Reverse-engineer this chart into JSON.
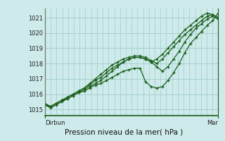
{
  "bg_color": "#ceeaea",
  "grid_color": "#a0cccc",
  "line_color": "#1a5e1a",
  "marker_color": "#1a5e1a",
  "title": "Pression niveau de la mer( hPa )",
  "xlabel_left": "Dirbun",
  "xlabel_right": "Mar",
  "ylim": [
    1014.6,
    1021.6
  ],
  "yticks": [
    1015,
    1016,
    1017,
    1018,
    1019,
    1020,
    1021
  ],
  "n_xminor": 30,
  "series": [
    [
      1015.3,
      1015.2,
      1015.4,
      1015.6,
      1015.8,
      1016.0,
      1016.2,
      1016.4,
      1016.6,
      1016.9,
      1017.1,
      1017.4,
      1017.7,
      1017.9,
      1018.1,
      1018.3,
      1018.4,
      1018.4,
      1018.3,
      1018.1,
      1018.3,
      1018.6,
      1019.0,
      1019.4,
      1019.8,
      1020.2,
      1020.5,
      1020.8,
      1021.1,
      1021.3,
      1021.2,
      1021.0
    ],
    [
      1015.3,
      1015.2,
      1015.4,
      1015.6,
      1015.8,
      1016.0,
      1016.2,
      1016.4,
      1016.7,
      1017.0,
      1017.3,
      1017.6,
      1017.9,
      1018.1,
      1018.3,
      1018.4,
      1018.5,
      1018.5,
      1018.4,
      1018.2,
      1018.0,
      1018.3,
      1018.7,
      1019.1,
      1019.5,
      1019.9,
      1020.2,
      1020.5,
      1020.8,
      1021.1,
      1021.2,
      1021.0
    ],
    [
      1015.3,
      1015.1,
      1015.3,
      1015.5,
      1015.7,
      1015.9,
      1016.1,
      1016.3,
      1016.5,
      1016.7,
      1016.9,
      1017.2,
      1017.5,
      1017.8,
      1018.1,
      1018.3,
      1018.4,
      1018.4,
      1018.3,
      1018.1,
      1017.8,
      1017.5,
      1017.8,
      1018.3,
      1018.8,
      1019.4,
      1019.9,
      1020.3,
      1020.6,
      1020.9,
      1021.1,
      1020.9
    ],
    [
      1015.4,
      1015.2,
      1015.4,
      1015.6,
      1015.7,
      1015.9,
      1016.1,
      1016.2,
      1016.4,
      1016.6,
      1016.7,
      1016.9,
      1017.1,
      1017.3,
      1017.5,
      1017.6,
      1017.7,
      1017.7,
      1016.8,
      1016.5,
      1016.4,
      1016.5,
      1016.9,
      1017.4,
      1018.0,
      1018.7,
      1019.3,
      1019.7,
      1020.1,
      1020.5,
      1020.8,
      1021.3
    ]
  ]
}
